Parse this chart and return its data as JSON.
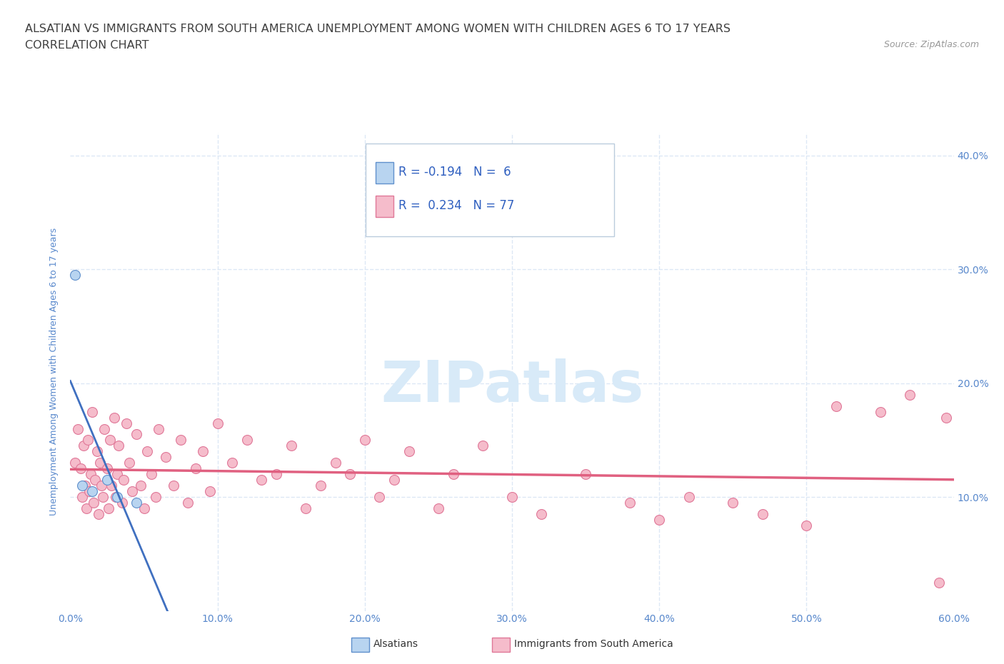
{
  "title_line1": "ALSATIAN VS IMMIGRANTS FROM SOUTH AMERICA UNEMPLOYMENT AMONG WOMEN WITH CHILDREN AGES 6 TO 17 YEARS",
  "title_line2": "CORRELATION CHART",
  "source_text": "Source: ZipAtlas.com",
  "xlabel_vals": [
    0,
    10,
    20,
    30,
    40,
    50,
    60
  ],
  "ylabel_label": "Unemployment Among Women with Children Ages 6 to 17 years",
  "alsatian_x": [
    0.3,
    0.8,
    1.5,
    2.5,
    3.2,
    4.5
  ],
  "alsatian_y": [
    29.5,
    11.0,
    10.5,
    11.5,
    10.0,
    9.5
  ],
  "south_america_x": [
    0.3,
    0.5,
    0.7,
    0.8,
    0.9,
    1.0,
    1.1,
    1.2,
    1.3,
    1.4,
    1.5,
    1.6,
    1.7,
    1.8,
    1.9,
    2.0,
    2.1,
    2.2,
    2.3,
    2.5,
    2.6,
    2.7,
    2.8,
    3.0,
    3.1,
    3.2,
    3.3,
    3.5,
    3.6,
    3.8,
    4.0,
    4.2,
    4.5,
    4.8,
    5.0,
    5.2,
    5.5,
    5.8,
    6.0,
    6.5,
    7.0,
    7.5,
    8.0,
    8.5,
    9.0,
    9.5,
    10.0,
    11.0,
    12.0,
    13.0,
    14.0,
    15.0,
    16.0,
    17.0,
    18.0,
    19.0,
    20.0,
    21.0,
    22.0,
    23.0,
    25.0,
    26.0,
    28.0,
    30.0,
    32.0,
    35.0,
    38.0,
    40.0,
    42.0,
    45.0,
    47.0,
    50.0,
    52.0,
    55.0,
    57.0,
    59.0,
    59.5
  ],
  "south_america_y": [
    13.0,
    16.0,
    12.5,
    10.0,
    14.5,
    11.0,
    9.0,
    15.0,
    10.5,
    12.0,
    17.5,
    9.5,
    11.5,
    14.0,
    8.5,
    13.0,
    11.0,
    10.0,
    16.0,
    12.5,
    9.0,
    15.0,
    11.0,
    17.0,
    10.0,
    12.0,
    14.5,
    9.5,
    11.5,
    16.5,
    13.0,
    10.5,
    15.5,
    11.0,
    9.0,
    14.0,
    12.0,
    10.0,
    16.0,
    13.5,
    11.0,
    15.0,
    9.5,
    12.5,
    14.0,
    10.5,
    16.5,
    13.0,
    15.0,
    11.5,
    12.0,
    14.5,
    9.0,
    11.0,
    13.0,
    12.0,
    15.0,
    10.0,
    11.5,
    14.0,
    9.0,
    12.0,
    14.5,
    10.0,
    8.5,
    12.0,
    9.5,
    8.0,
    10.0,
    9.5,
    8.5,
    7.5,
    18.0,
    17.5,
    19.0,
    2.5,
    17.0
  ],
  "alsatian_color": "#b8d4f0",
  "south_america_color": "#f5bccb",
  "alsatian_edge_color": "#6090cc",
  "south_america_edge_color": "#e07898",
  "alsatian_trend_color": "#4070c0",
  "south_america_trend_color": "#e06080",
  "R_alsatian": -0.194,
  "N_alsatian": 6,
  "R_south_america": 0.234,
  "N_south_america": 77,
  "legend_R_color": "#3060c0",
  "watermark_color": "#d8eaf8",
  "grid_color": "#dde8f5",
  "background_color": "#ffffff",
  "title_color": "#404040",
  "tick_label_color": "#5888cc",
  "ylim_max": 42,
  "grid_style": "--",
  "marker_size": 100
}
